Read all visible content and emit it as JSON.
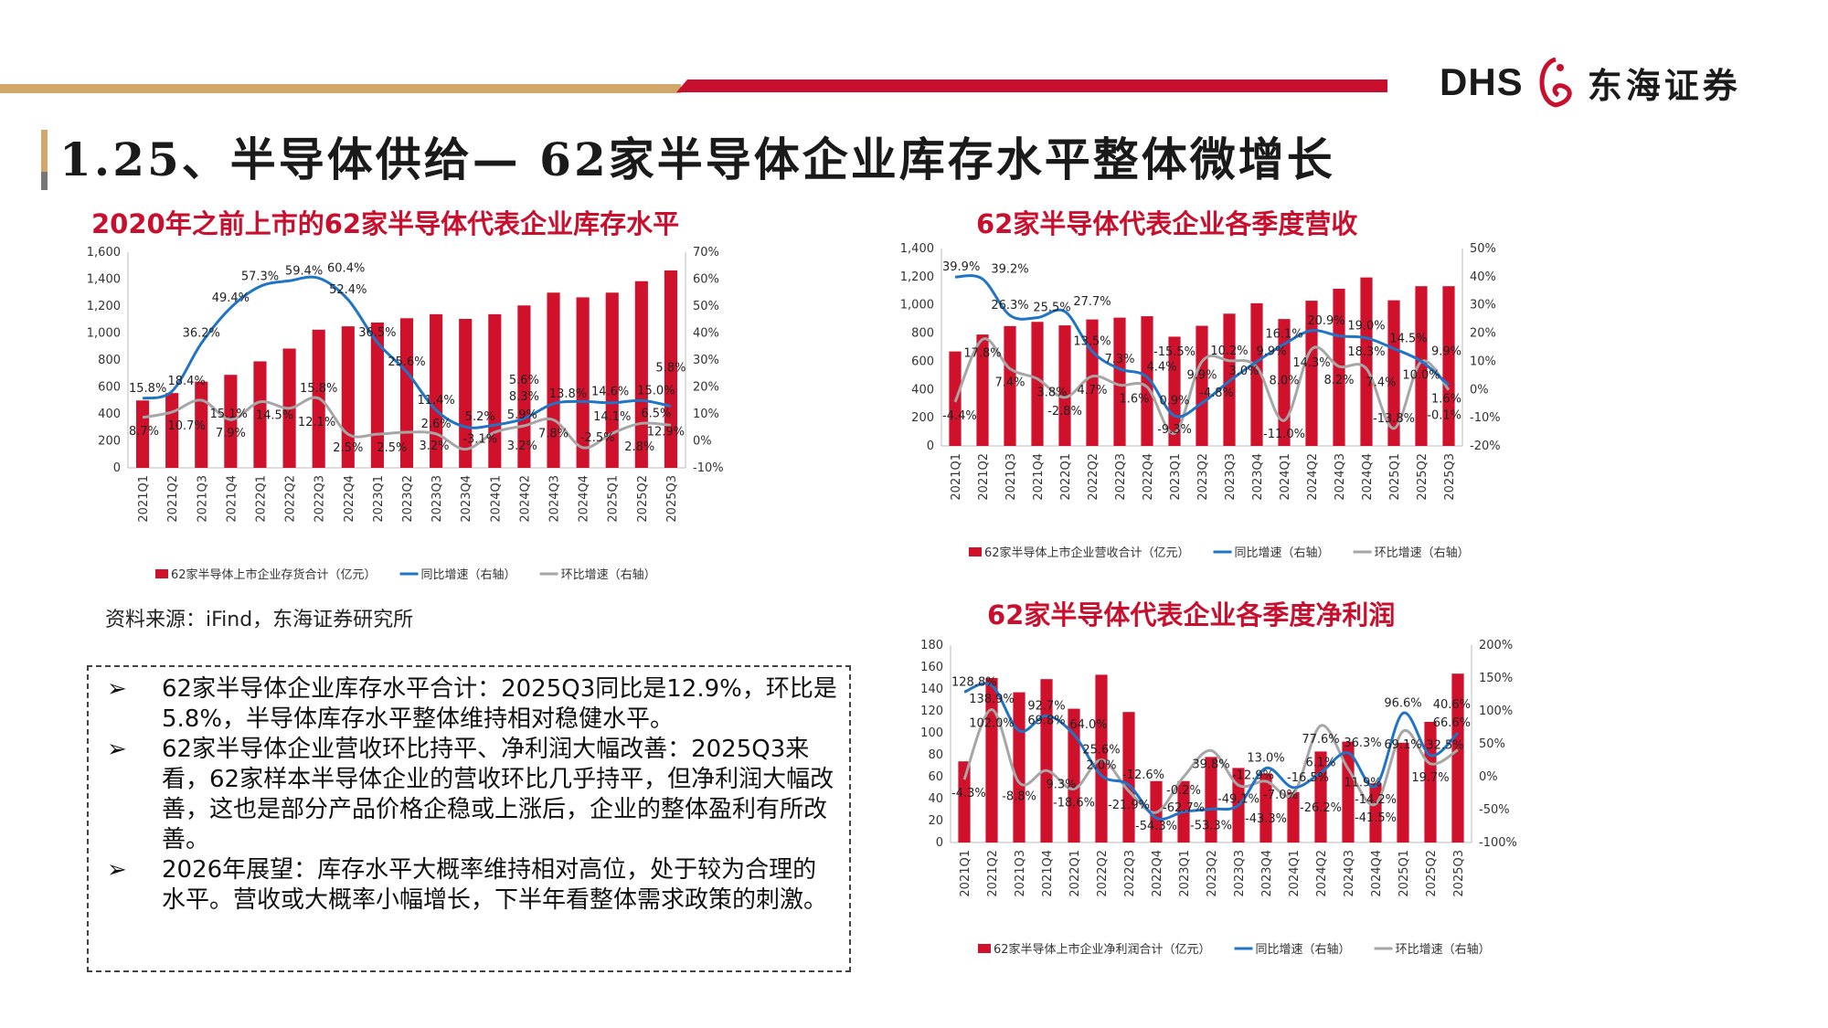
{
  "header": {
    "title": "1.25、半导体供给— 62家半导体企业库存水平整体微增长",
    "logo_en": "DHS",
    "logo_zh": "东海证券"
  },
  "colors": {
    "bar": "#d0112b",
    "yoy": "#1f74c6",
    "qoq": "#a6a6a6",
    "brand_red": "#c8102e",
    "brand_tan": "#d2a86a"
  },
  "source": "资料来源：iFind，东海证券研究所",
  "bullets": [
    "62家半导体企业库存水平合计：2025Q3同比是12.9%，环比是5.8%，半导体库存水平整体维持相对稳健水平。",
    "62家半导体企业营收环比持平、净利润大幅改善：2025Q3来看，62家样本半导体企业的营收环比几乎持平，但净利润大幅改善，这也是部分产品价格企稳或上涨后，企业的整体盈利有所改善。",
    "2026年展望：库存水平大概率维持相对高位，处于较为合理的水平。营收或大概率小幅增长，下半年看整体需求政策的刺激。"
  ],
  "chart_data": [
    {
      "type": "bar+line",
      "title": "2020年之前上市的62家半导体代表企业库存水平",
      "categories": [
        "2021Q1",
        "2021Q2",
        "2021Q3",
        "2021Q4",
        "2022Q1",
        "2022Q2",
        "2022Q3",
        "2022Q4",
        "2023Q1",
        "2023Q2",
        "2023Q3",
        "2023Q4",
        "2024Q1",
        "2024Q2",
        "2024Q3",
        "2024Q4",
        "2025Q1",
        "2025Q2",
        "2025Q3"
      ],
      "ylim": [
        0,
        1600
      ],
      "yticks": [
        "0",
        "200",
        "400",
        "600",
        "800",
        "1,000",
        "1,200",
        "1,400",
        "1,600"
      ],
      "y2lim": [
        -10,
        70
      ],
      "y2ticks": [
        "-10%",
        "0%",
        "10%",
        "20%",
        "30%",
        "40%",
        "50%",
        "60%",
        "70%"
      ],
      "series": [
        {
          "name": "62家半导体上市企业存货合计（亿元）",
          "type": "bar",
          "values": [
            500,
            555,
            640,
            690,
            790,
            885,
            1025,
            1050,
            1078,
            1110,
            1140,
            1105,
            1140,
            1205,
            1300,
            1265,
            1300,
            1385,
            1465
          ]
        },
        {
          "name": "同比增速（右轴）",
          "type": "line",
          "values": [
            15.8,
            18.4,
            36.2,
            49.4,
            57.3,
            59.4,
            60.4,
            52.4,
            36.5,
            25.6,
            11.4,
            5.2,
            5.9,
            8.3,
            13.8,
            14.6,
            14.1,
            15.0,
            12.9
          ]
        },
        {
          "name": "环比增速（右轴）",
          "type": "line",
          "values": [
            8.7,
            10.7,
            15.1,
            7.9,
            14.5,
            12.1,
            15.8,
            2.5,
            2.5,
            3.2,
            2.6,
            -3.1,
            3.2,
            5.6,
            7.8,
            -2.5,
            2.8,
            6.5,
            5.8
          ]
        }
      ],
      "legend": "bottom"
    },
    {
      "type": "bar+line",
      "title": "62家半导体代表企业各季度营收",
      "categories": [
        "2021Q1",
        "2021Q2",
        "2021Q3",
        "2021Q4",
        "2022Q1",
        "2022Q2",
        "2022Q3",
        "2022Q4",
        "2023Q1",
        "2023Q2",
        "2023Q3",
        "2023Q4",
        "2024Q1",
        "2024Q2",
        "2024Q3",
        "2024Q4",
        "2025Q1",
        "2025Q2",
        "2025Q3"
      ],
      "ylim": [
        0,
        1400
      ],
      "yticks": [
        "0",
        "200",
        "400",
        "600",
        "800",
        "1,000",
        "1,200",
        "1,400"
      ],
      "y2lim": [
        -20,
        50
      ],
      "y2ticks": [
        "-20%",
        "-10%",
        "0%",
        "10%",
        "20%",
        "30%",
        "40%",
        "50%"
      ],
      "series": [
        {
          "name": "62家半导体上市企业营收合计（亿元）",
          "type": "bar",
          "values": [
            670,
            790,
            850,
            880,
            855,
            897,
            910,
            920,
            775,
            852,
            938,
            1012,
            900,
            1030,
            1115,
            1195,
            1033,
            1133,
            1133
          ]
        },
        {
          "name": "同比增速（右轴）",
          "type": "line",
          "values": [
            39.9,
            39.2,
            26.3,
            25.5,
            27.7,
            13.5,
            7.3,
            4.4,
            -9.3,
            -4.8,
            3.0,
            9.9,
            16.1,
            20.9,
            19.0,
            18.3,
            14.5,
            10.0,
            1.6
          ]
        },
        {
          "name": "环比增速（右轴）",
          "type": "line",
          "values": [
            -4.4,
            17.8,
            7.4,
            3.8,
            -2.8,
            4.7,
            1.6,
            0.9,
            -15.5,
            9.9,
            10.2,
            8.0,
            -11.0,
            14.3,
            8.2,
            7.4,
            -13.8,
            9.9,
            -0.1
          ]
        }
      ],
      "legend": "bottom"
    },
    {
      "type": "bar+line",
      "title": "62家半导体代表企业各季度净利润",
      "categories": [
        "2021Q1",
        "2021Q2",
        "2021Q3",
        "2021Q4",
        "2022Q1",
        "2022Q2",
        "2022Q3",
        "2022Q4",
        "2023Q1",
        "2023Q2",
        "2023Q3",
        "2023Q4",
        "2024Q1",
        "2024Q2",
        "2024Q3",
        "2024Q4",
        "2025Q1",
        "2025Q2",
        "2025Q3"
      ],
      "ylim": [
        0,
        180
      ],
      "yticks": [
        "0",
        "20",
        "40",
        "60",
        "80",
        "100",
        "120",
        "140",
        "160",
        "180"
      ],
      "y2lim": [
        -100,
        200
      ],
      "y2ticks": [
        "-100%",
        "-50%",
        "0%",
        "50%",
        "100%",
        "150%",
        "200%"
      ],
      "series": [
        {
          "name": "62家半导体上市企业净利润合计（亿元）",
          "type": "bar",
          "values": [
            74,
            150,
            137,
            149,
            122,
            153,
            119,
            56,
            56,
            78,
            68,
            63,
            46,
            83,
            92,
            54,
            91,
            110,
            154
          ]
        },
        {
          "name": "同比增速（右轴）",
          "type": "line",
          "values": [
            128.8,
            138.9,
            69.8,
            92.7,
            64.0,
            2.0,
            -12.6,
            -62.7,
            -53.3,
            -49.1,
            -43.3,
            13.0,
            -16.5,
            6.1,
            36.3,
            -14.2,
            96.6,
            32.5,
            66.6
          ]
        },
        {
          "name": "环比增速（右轴）",
          "type": "line",
          "values": [
            -4.3,
            102.0,
            -8.8,
            9.3,
            -18.6,
            25.6,
            -21.9,
            -54.3,
            -0.2,
            39.8,
            -12.9,
            -7.0,
            -26.2,
            77.6,
            11.9,
            -41.5,
            69.1,
            19.7,
            40.6
          ]
        }
      ],
      "legend": "bottom"
    }
  ]
}
